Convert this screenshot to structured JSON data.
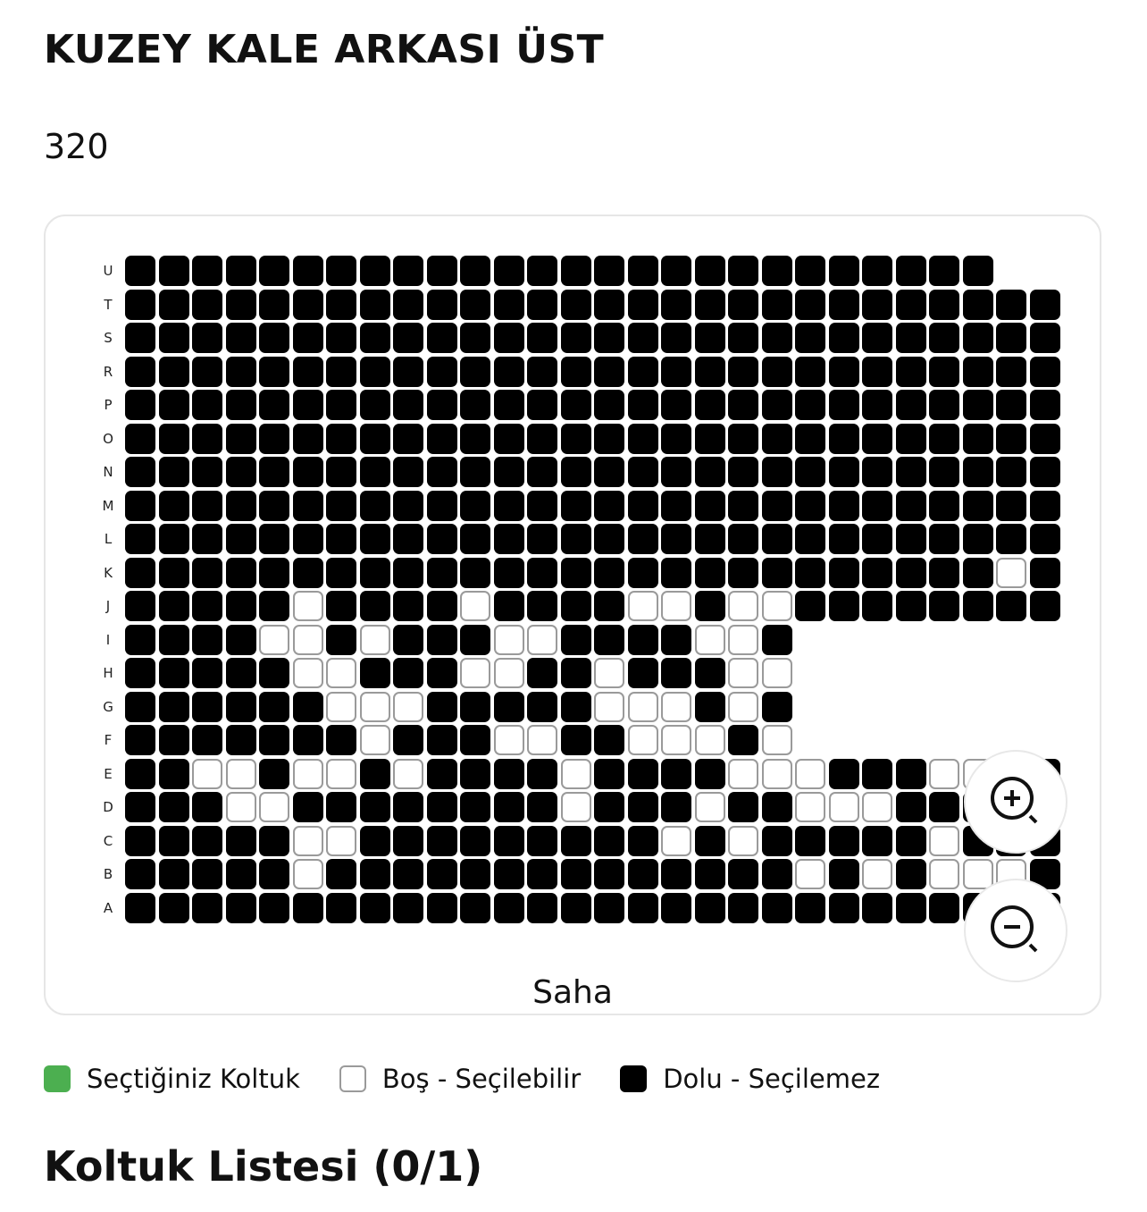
{
  "header": {
    "title": "KUZEY KALE ARKASI ÜST",
    "block_number": "320"
  },
  "seat_map": {
    "field_label": "Saha",
    "colors": {
      "occupied": "#000000",
      "available": "#ffffff",
      "available_border": "#9a9a9a",
      "selected": "#4caf50"
    },
    "rows": [
      {
        "label": "U",
        "seats": "BBBBBBBBBBBBBBBBBBBBBBBBBB"
      },
      {
        "label": "T",
        "seats": "BBBBBBBBBBBBBBBBBBBBBBBBBBBB"
      },
      {
        "label": "S",
        "seats": "BBBBBBBBBBBBBBBBBBBBBBBBBBBB"
      },
      {
        "label": "R",
        "seats": "BBBBBBBBBBBBBBBBBBBBBBBBBBBB"
      },
      {
        "label": "P",
        "seats": "BBBBBBBBBBBBBBBBBBBBBBBBBBBB"
      },
      {
        "label": "O",
        "seats": "BBBBBBBBBBBBBBBBBBBBBBBBBBBB"
      },
      {
        "label": "N",
        "seats": "BBBBBBBBBBBBBBBBBBBBBBBBBBBB"
      },
      {
        "label": "M",
        "seats": "BBBBBBBBBBBBBBBBBBBBBBBBBBBB"
      },
      {
        "label": "L",
        "seats": "BBBBBBBBBBBBBBBBBBBBBBBBBBBB"
      },
      {
        "label": "K",
        "seats": "BBBBBBBBBBBBBBBBBBBBBBBBBBWB"
      },
      {
        "label": "J",
        "seats": "BBBBBWBBBBWBBBBWWBWWBBBBBBBB"
      },
      {
        "label": "I",
        "seats": "BBBBWWBWBBBWWBBBBWWB"
      },
      {
        "label": "H",
        "seats": "BBBBBWWBBBWWBBWBBBWW"
      },
      {
        "label": "G",
        "seats": "BBBBBBWWWBBBBBWWWBWB"
      },
      {
        "label": "F",
        "seats": "BBBBBBBWBBBWWBBWWWBW"
      },
      {
        "label": "E",
        "seats": "BBWWBWWBWBBBBWBBBBWWWBBBWWBB"
      },
      {
        "label": "D",
        "seats": "BBBWWBBBBBBBBWBBBWBBWWWBBBBB"
      },
      {
        "label": "C",
        "seats": "BBBBBWWBBBBBBBBBWBWBBBBBWBBB"
      },
      {
        "label": "B",
        "seats": "BBBBBWBBBBBBBBBBBBBBWBWBWWWB"
      },
      {
        "label": "A",
        "seats": "BBBBBBBBBBBBBBBBBBBBBBBBBBBB"
      }
    ],
    "zoom_in_icon": "zoom-in-icon",
    "zoom_out_icon": "zoom-out-icon"
  },
  "legend": [
    {
      "label": "Seçtiğiniz Koltuk",
      "state": "selected"
    },
    {
      "label": "Boş - Seçilebilir",
      "state": "available"
    },
    {
      "label": "Dolu - Seçilemez",
      "state": "occupied"
    }
  ],
  "seat_list": {
    "title": "Koltuk Listesi (0/1)"
  }
}
